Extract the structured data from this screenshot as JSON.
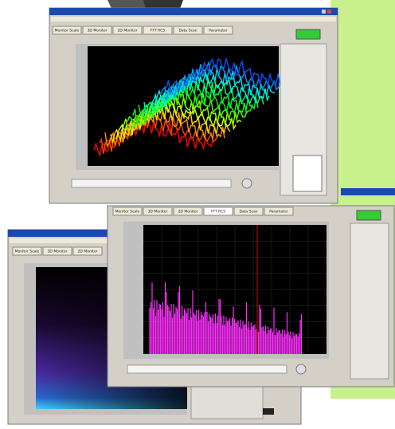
{
  "windows": [
    {
      "tabs": [
        "Monitor Scale",
        "3D Monitor",
        "2D Monitor",
        "FFT RCS",
        "Data Scan",
        "Parameter"
      ]
    },
    {
      "tabs": [
        "Monitor Scale",
        "3D Monitor",
        "2D Monitor",
        "FFT RCS",
        "Data Scan",
        "Parameter"
      ]
    },
    {
      "tabs": [
        "Monitor Scale",
        "3D Monitor",
        "2D Monitor"
      ]
    }
  ]
}
